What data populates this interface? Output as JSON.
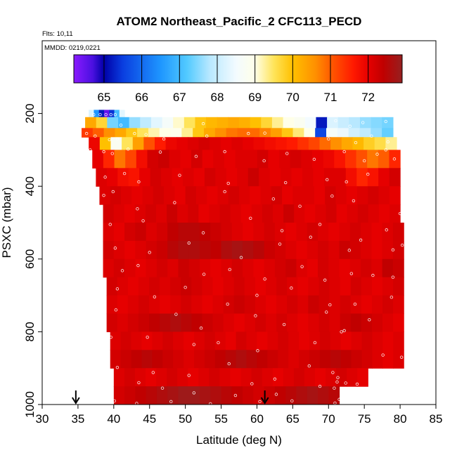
{
  "chart_data": {
    "type": "heatmap",
    "title": "ATOM2 Northeast_Pacific_2 CFC113_PECD",
    "flights_text": "Flts: 10,11",
    "mmdd_text": "MMDD: 0219,0221",
    "xlabel": "Latitude (deg N)",
    "ylabel": "PSXC (mbar)",
    "xlim": [
      30,
      85
    ],
    "ylim": [
      1000,
      0
    ],
    "x_ticks": [
      "30",
      "35",
      "40",
      "45",
      "50",
      "55",
      "60",
      "65",
      "70",
      "75",
      "80",
      "85"
    ],
    "y_ticks": [
      "200",
      "400",
      "600",
      "800",
      "1000"
    ],
    "colorbar": {
      "range": [
        64.2,
        72.9
      ],
      "tick_labels": [
        "65",
        "66",
        "67",
        "68",
        "69",
        "70",
        "71",
        "72"
      ],
      "stops": [
        {
          "value": 64.2,
          "color": "#8a1aff"
        },
        {
          "value": 64.7,
          "color": "#4a10e0"
        },
        {
          "value": 65.0,
          "color": "#0000a8"
        },
        {
          "value": 65.5,
          "color": "#0a3ee0"
        },
        {
          "value": 66.5,
          "color": "#1e96ff"
        },
        {
          "value": 67.2,
          "color": "#52caff"
        },
        {
          "value": 67.8,
          "color": "#b8e8ff"
        },
        {
          "value": 68.5,
          "color": "#f3fbff"
        },
        {
          "value": 69.0,
          "color": "#ffffe8"
        },
        {
          "value": 69.5,
          "color": "#ffe45a"
        },
        {
          "value": 70.0,
          "color": "#ffc000"
        },
        {
          "value": 70.6,
          "color": "#ff9000"
        },
        {
          "value": 71.1,
          "color": "#ff5000"
        },
        {
          "value": 71.6,
          "color": "#ff1a00"
        },
        {
          "value": 72.0,
          "color": "#e60000"
        },
        {
          "value": 72.4,
          "color": "#c00000"
        },
        {
          "value": 72.9,
          "color": "#962020"
        }
      ]
    },
    "arrows_latitude": [
      34.7,
      61.1
    ],
    "bins": [
      {
        "p": [
          190,
          210
        ],
        "lat": [
          36.5,
          41.5
        ],
        "values": [
          68.2,
          66.5,
          65.2,
          64.5,
          65.4,
          67.0,
          68.3
        ]
      },
      {
        "p": [
          210,
          240
        ],
        "lat": [
          36.0,
          79.0
        ],
        "values": [
          70.3,
          69.7,
          67.4,
          67.0,
          67.6,
          67.9,
          68.3,
          68.6,
          69.1,
          69.5,
          69.9,
          70.1,
          70.2,
          70.3,
          70.2,
          70.0,
          69.7,
          69.3,
          69.0,
          68.8,
          68.5,
          65.2,
          68.2,
          68.0,
          67.8,
          67.6,
          67.5,
          67.4
        ]
      },
      {
        "p": [
          240,
          265
        ],
        "lat": [
          35.5,
          79.0
        ],
        "values": [
          71.3,
          71.0,
          70.6,
          70.3,
          69.9,
          69.5,
          69.2,
          69.0,
          68.9,
          69.3,
          69.9,
          70.3,
          70.6,
          70.8,
          70.9,
          70.9,
          70.7,
          70.4,
          69.9,
          69.4,
          69.0,
          65.6,
          68.6,
          68.4,
          68.1,
          67.9,
          67.6,
          67.3
        ]
      },
      {
        "p": [
          265,
          300
        ],
        "lat": [
          36.5,
          79.5
        ],
        "values": [
          71.9,
          70.0,
          68.8,
          69.5,
          70.4,
          71.1,
          71.6,
          71.9,
          72.0,
          72.1,
          72.2,
          72.1,
          72.0,
          72.1,
          72.0,
          71.9,
          71.8,
          71.7,
          71.6,
          71.4,
          71.2,
          70.9,
          70.6,
          70.3,
          70.1,
          69.8,
          69.6,
          69.3
        ]
      },
      {
        "p": [
          300,
          350
        ],
        "lat": [
          37.0,
          80.0
        ],
        "values": [
          72.0,
          71.5,
          70.8,
          71.2,
          71.8,
          72.2,
          72.3,
          72.1,
          72.0,
          72.2,
          72.0,
          72.1,
          72.0,
          72.1,
          72.1,
          72.2,
          72.0,
          72.1,
          72.2,
          72.1,
          72.0,
          71.9,
          71.7,
          71.4,
          71.1,
          70.8,
          71.0,
          71.5
        ]
      },
      {
        "p": [
          350,
          400
        ],
        "lat": [
          37.5,
          80.0
        ],
        "values": [
          72.1,
          72.0,
          71.8,
          71.7,
          72.0,
          72.2,
          72.1,
          72.0,
          72.1,
          72.0,
          72.2,
          72.1,
          72.0,
          72.1,
          72.3,
          72.1,
          72.0,
          72.1,
          72.0,
          72.1,
          72.0,
          72.1,
          72.1,
          71.8,
          71.5,
          71.7,
          72.0,
          72.2
        ]
      },
      {
        "p": [
          400,
          450
        ],
        "lat": [
          38.0,
          80.0
        ],
        "values": [
          72.1,
          72.2,
          72.1,
          72.0,
          72.1,
          72.2,
          72.1,
          72.0,
          72.2,
          72.1,
          72.0,
          72.1,
          72.2,
          72.1,
          72.0,
          72.1,
          72.2,
          72.0,
          72.1,
          72.1,
          72.0,
          72.2,
          72.1,
          72.0,
          72.1,
          72.2,
          72.1,
          72.0
        ]
      },
      {
        "p": [
          450,
          500
        ],
        "lat": [
          38.5,
          80.0
        ],
        "values": [
          72.2,
          72.1,
          72.0,
          72.1,
          72.2,
          72.1,
          72.3,
          72.1,
          72.2,
          72.0,
          72.1,
          72.2,
          72.1,
          72.0,
          72.1,
          72.2,
          72.1,
          72.3,
          72.1,
          72.0,
          72.1,
          72.2,
          72.0,
          72.1,
          72.2,
          72.1,
          72.0,
          72.1
        ]
      },
      {
        "p": [
          500,
          550
        ],
        "lat": [
          38.5,
          80.5
        ],
        "values": [
          72.1,
          72.0,
          72.2,
          72.3,
          72.1,
          72.2,
          72.4,
          72.5,
          72.5,
          72.4,
          72.3,
          72.2,
          72.1,
          72.0,
          72.1,
          72.2,
          72.1,
          72.0,
          72.1,
          72.2,
          72.1,
          72.0,
          72.1,
          72.2,
          72.1,
          72.0,
          72.1,
          72.2
        ]
      },
      {
        "p": [
          550,
          600
        ],
        "lat": [
          38.5,
          80.5
        ],
        "values": [
          72.2,
          72.1,
          72.0,
          72.1,
          72.2,
          72.3,
          72.5,
          72.6,
          72.6,
          72.5,
          72.4,
          72.6,
          72.7,
          72.6,
          72.5,
          72.3,
          72.2,
          72.1,
          72.0,
          72.1,
          72.2,
          72.1,
          72.3,
          72.2,
          72.1,
          72.0,
          72.1,
          72.2
        ]
      },
      {
        "p": [
          600,
          650
        ],
        "lat": [
          38.5,
          80.5
        ],
        "values": [
          72.1,
          72.2,
          72.1,
          72.0,
          72.1,
          72.2,
          72.1,
          72.3,
          72.2,
          72.1,
          72.0,
          72.1,
          72.2,
          72.1,
          72.0,
          72.1,
          72.2,
          72.3,
          72.1,
          72.0,
          72.2,
          72.1,
          72.0,
          72.1,
          72.2,
          72.1,
          72.4,
          72.3
        ]
      },
      {
        "p": [
          650,
          700
        ],
        "lat": [
          39.0,
          80.5
        ],
        "values": [
          72.2,
          72.1,
          72.0,
          72.1,
          72.2,
          72.1,
          72.2,
          72.3,
          72.2,
          72.1,
          72.0,
          72.1,
          72.2,
          72.1,
          72.0,
          72.1,
          72.2,
          72.1,
          72.0,
          72.1,
          72.2,
          72.1,
          72.0,
          72.2,
          72.1,
          72.0,
          72.1,
          72.2
        ]
      },
      {
        "p": [
          700,
          750
        ],
        "lat": [
          39.0,
          80.5
        ],
        "values": [
          72.1,
          72.0,
          72.1,
          72.2,
          72.1,
          72.0,
          72.1,
          72.2,
          72.1,
          72.0,
          72.1,
          72.2,
          72.3,
          72.2,
          72.1,
          72.0,
          72.1,
          72.2,
          72.1,
          72.3,
          72.2,
          72.1,
          72.2,
          72.1,
          72.0,
          72.1,
          72.2,
          72.1
        ]
      },
      {
        "p": [
          750,
          800
        ],
        "lat": [
          39.0,
          80.5
        ],
        "values": [
          72.2,
          72.1,
          72.2,
          72.3,
          72.4,
          72.5,
          72.6,
          72.5,
          72.4,
          72.3,
          72.2,
          72.1,
          72.0,
          72.1,
          72.2,
          72.1,
          72.2,
          72.1,
          72.0,
          72.1,
          72.2,
          72.1,
          72.3,
          72.4,
          72.3,
          72.2,
          72.1,
          72.0
        ]
      },
      {
        "p": [
          800,
          850
        ],
        "lat": [
          39.5,
          80.5
        ],
        "values": [
          72.1,
          72.2,
          72.1,
          72.0,
          72.1,
          72.2,
          72.1,
          72.0,
          72.1,
          72.2,
          72.1,
          72.0,
          72.2,
          72.1,
          72.0,
          72.1,
          72.2,
          72.1,
          72.0,
          72.1,
          72.2,
          72.1,
          72.0,
          72.1,
          72.2,
          72.1,
          72.0,
          72.1
        ]
      },
      {
        "p": [
          850,
          900
        ],
        "lat": [
          39.5,
          80.5
        ],
        "values": [
          72.2,
          72.3,
          72.4,
          72.5,
          72.4,
          72.3,
          72.2,
          72.1,
          72.2,
          72.3,
          72.4,
          72.5,
          72.6,
          72.5,
          72.4,
          72.3,
          72.2,
          72.1,
          72.2,
          72.3,
          72.4,
          72.5,
          72.4,
          72.3,
          72.2,
          72.1,
          72.0,
          72.1
        ]
      },
      {
        "p": [
          900,
          950
        ],
        "lat": [
          40.0,
          75.5
        ],
        "values": [
          72.1,
          72.2,
          72.1,
          72.0,
          72.1,
          72.2,
          72.1,
          72.0,
          72.1,
          72.2,
          72.1,
          72.0,
          72.1,
          72.2,
          72.1,
          72.0,
          72.1,
          72.2,
          72.1,
          72.0,
          72.1,
          72.2,
          72.1,
          72.0
        ]
      },
      {
        "p": [
          950,
          1000
        ],
        "lat": [
          40.0,
          71.5
        ],
        "values": [
          72.2,
          72.3,
          72.4,
          72.5,
          72.6,
          72.7,
          72.8,
          72.8,
          72.7,
          72.6,
          72.5,
          72.4,
          72.3,
          72.2,
          72.3,
          72.4,
          72.5,
          72.6,
          72.7,
          72.6,
          72.5
        ]
      }
    ],
    "points": [
      [
        37.2,
        203
      ],
      [
        38.1,
        203
      ],
      [
        38.9,
        203
      ],
      [
        39.6,
        203
      ],
      [
        40.2,
        203
      ],
      [
        67.6,
        192
      ],
      [
        68.0,
        192
      ],
      [
        68.4,
        192
      ],
      [
        71.0,
        220
      ],
      [
        73.0,
        235
      ],
      [
        74.8,
        225
      ],
      [
        78.0,
        222
      ],
      [
        52.5,
        228
      ],
      [
        41.0,
        232
      ],
      [
        36.2,
        255
      ],
      [
        37.4,
        262
      ],
      [
        39.4,
        272
      ],
      [
        40.5,
        270
      ],
      [
        42.9,
        255
      ],
      [
        44.5,
        258
      ],
      [
        47.0,
        270
      ],
      [
        53.0,
        262
      ],
      [
        58.8,
        255
      ],
      [
        61.1,
        254
      ],
      [
        70.0,
        270
      ],
      [
        73.8,
        280
      ],
      [
        76.0,
        262
      ],
      [
        78.3,
        278
      ],
      [
        36.7,
        300
      ],
      [
        38.6,
        305
      ],
      [
        39.8,
        310
      ],
      [
        42.0,
        298
      ],
      [
        46.5,
        306
      ],
      [
        51.5,
        318
      ],
      [
        55.5,
        305
      ],
      [
        61.0,
        330
      ],
      [
        64.2,
        310
      ],
      [
        68.0,
        326
      ],
      [
        72.2,
        305
      ],
      [
        75.0,
        330
      ],
      [
        76.8,
        312
      ],
      [
        78.0,
        300
      ],
      [
        79.2,
        325
      ],
      [
        38.8,
        375
      ],
      [
        41.5,
        365
      ],
      [
        43.5,
        388
      ],
      [
        49.2,
        370
      ],
      [
        56.0,
        392
      ],
      [
        64.0,
        390
      ],
      [
        69.8,
        382
      ],
      [
        72.5,
        388
      ],
      [
        75.5,
        367
      ],
      [
        38.6,
        425
      ],
      [
        39.9,
        415
      ],
      [
        43.3,
        462
      ],
      [
        48.5,
        445
      ],
      [
        55.5,
        415
      ],
      [
        62.3,
        435
      ],
      [
        66.0,
        455
      ],
      [
        70.5,
        427
      ],
      [
        73.5,
        440
      ],
      [
        80.0,
        475
      ],
      [
        39.5,
        505
      ],
      [
        44.1,
        495
      ],
      [
        52.5,
        528
      ],
      [
        59.1,
        488
      ],
      [
        63.5,
        522
      ],
      [
        68.8,
        505
      ],
      [
        74.5,
        548
      ],
      [
        78.1,
        520
      ],
      [
        40.2,
        570
      ],
      [
        45.0,
        582
      ],
      [
        50.5,
        556
      ],
      [
        57.8,
        596
      ],
      [
        63.2,
        559
      ],
      [
        67.5,
        540
      ],
      [
        72.9,
        576
      ],
      [
        79.0,
        575
      ],
      [
        80.3,
        562
      ],
      [
        41.2,
        632
      ],
      [
        43.4,
        618
      ],
      [
        52.6,
        642
      ],
      [
        56.2,
        629
      ],
      [
        61.1,
        655
      ],
      [
        66.3,
        621
      ],
      [
        69.5,
        658
      ],
      [
        73.2,
        640
      ],
      [
        76.2,
        645
      ],
      [
        79.0,
        650
      ],
      [
        40.5,
        682
      ],
      [
        45.7,
        704
      ],
      [
        50.0,
        678
      ],
      [
        55.9,
        724
      ],
      [
        60.0,
        700
      ],
      [
        64.8,
        680
      ],
      [
        70.2,
        726
      ],
      [
        73.7,
        724
      ],
      [
        78.8,
        705
      ],
      [
        40.3,
        740
      ],
      [
        48.7,
        752
      ],
      [
        52.2,
        790
      ],
      [
        59.8,
        756
      ],
      [
        63.8,
        780
      ],
      [
        69.7,
        746
      ],
      [
        72.2,
        797
      ],
      [
        75.7,
        767
      ],
      [
        39.6,
        815
      ],
      [
        44.7,
        815
      ],
      [
        51.2,
        835
      ],
      [
        54.6,
        830
      ],
      [
        60.1,
        852
      ],
      [
        68.1,
        830
      ],
      [
        71.8,
        800
      ],
      [
        77.6,
        864
      ],
      [
        80.2,
        870
      ],
      [
        40.5,
        898
      ],
      [
        45.5,
        912
      ],
      [
        50.5,
        920
      ],
      [
        56.1,
        888
      ],
      [
        62.5,
        930
      ],
      [
        67.3,
        894
      ],
      [
        70.6,
        912
      ],
      [
        71.3,
        926
      ],
      [
        40.1,
        990
      ],
      [
        43.5,
        940
      ],
      [
        46.8,
        955
      ],
      [
        51.2,
        968
      ],
      [
        59.3,
        943
      ],
      [
        62.7,
        972
      ],
      [
        68.8,
        950
      ],
      [
        70.8,
        955
      ],
      [
        71.2,
        938
      ],
      [
        72.4,
        941
      ],
      [
        74.0,
        944
      ],
      [
        39.8,
        997
      ],
      [
        43.2,
        997
      ],
      [
        48.0,
        992
      ],
      [
        53.5,
        998
      ],
      [
        57.0,
        975
      ],
      [
        60.4,
        992
      ],
      [
        64.9,
        990
      ],
      [
        70.9,
        996
      ],
      [
        71.5,
        986
      ]
    ]
  }
}
